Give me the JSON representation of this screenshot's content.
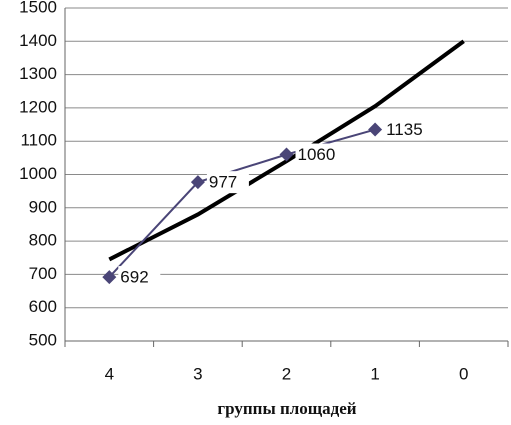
{
  "chart_data": {
    "type": "line",
    "x_label": "группы площадей",
    "categories": [
      "4",
      "3",
      "2",
      "1",
      "0"
    ],
    "series": [
      {
        "color": "#4a4577",
        "marker": "diamond",
        "values": [
          692,
          977,
          1060,
          1135,
          null
        ],
        "data_labels": true
      },
      {
        "color": "#000000",
        "marker": "none",
        "values": [
          745,
          880,
          1040,
          1205,
          1400
        ]
      }
    ],
    "ylim": [
      500,
      1500
    ],
    "yticks": [
      500,
      600,
      700,
      800,
      900,
      1000,
      1100,
      1200,
      1300,
      1400,
      1500
    ],
    "grid": true
  }
}
